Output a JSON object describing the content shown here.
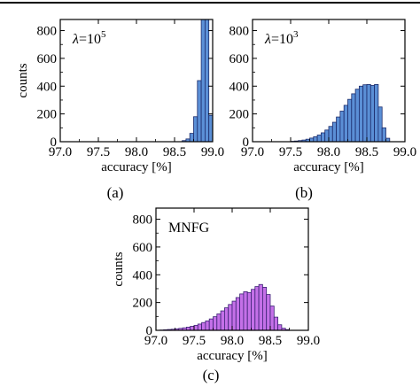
{
  "chart_data": [
    {
      "type": "bar",
      "panel": "(a)",
      "annotation": {
        "symbol": "λ",
        "equals": "=",
        "base": "10",
        "exponent": "5"
      },
      "xlabel": "accuracy [%]",
      "ylabel": "counts",
      "xlim": [
        97.0,
        99.0
      ],
      "ylim": [
        0,
        880
      ],
      "xticks": [
        "97.0",
        "97.5",
        "98.0",
        "98.5",
        "99.0"
      ],
      "yticks": [
        "0",
        "200",
        "400",
        "600",
        "800"
      ],
      "bin_width": 0.05,
      "color": "#5b8fd6",
      "bins": [
        {
          "x": 98.6,
          "y": 8
        },
        {
          "x": 98.65,
          "y": 20
        },
        {
          "x": 98.7,
          "y": 60
        },
        {
          "x": 98.75,
          "y": 180
        },
        {
          "x": 98.8,
          "y": 440
        },
        {
          "x": 98.85,
          "y": 880
        },
        {
          "x": 98.9,
          "y": 880
        },
        {
          "x": 98.95,
          "y": 190
        }
      ]
    },
    {
      "type": "bar",
      "panel": "(b)",
      "annotation": {
        "symbol": "λ",
        "equals": "=",
        "base": "10",
        "exponent": "3"
      },
      "xlabel": "accuracy [%]",
      "ylabel": "",
      "xlim": [
        97.0,
        99.0
      ],
      "ylim": [
        0,
        880
      ],
      "xticks": [
        "97.0",
        "97.5",
        "98.0",
        "98.5",
        "99.0"
      ],
      "yticks": [
        "0",
        "200",
        "400",
        "600",
        "800"
      ],
      "bin_width": 0.05,
      "color": "#5b8fd6",
      "bins": [
        {
          "x": 97.5,
          "y": 3
        },
        {
          "x": 97.55,
          "y": 5
        },
        {
          "x": 97.6,
          "y": 8
        },
        {
          "x": 97.65,
          "y": 12
        },
        {
          "x": 97.7,
          "y": 18
        },
        {
          "x": 97.75,
          "y": 26
        },
        {
          "x": 97.8,
          "y": 36
        },
        {
          "x": 97.85,
          "y": 48
        },
        {
          "x": 97.9,
          "y": 64
        },
        {
          "x": 97.95,
          "y": 84
        },
        {
          "x": 98.0,
          "y": 110
        },
        {
          "x": 98.05,
          "y": 140
        },
        {
          "x": 98.1,
          "y": 178
        },
        {
          "x": 98.15,
          "y": 220
        },
        {
          "x": 98.2,
          "y": 262
        },
        {
          "x": 98.25,
          "y": 305
        },
        {
          "x": 98.3,
          "y": 345
        },
        {
          "x": 98.35,
          "y": 378
        },
        {
          "x": 98.4,
          "y": 400
        },
        {
          "x": 98.45,
          "y": 410
        },
        {
          "x": 98.5,
          "y": 412
        },
        {
          "x": 98.55,
          "y": 405
        },
        {
          "x": 98.6,
          "y": 412
        },
        {
          "x": 98.65,
          "y": 250
        },
        {
          "x": 98.7,
          "y": 100
        },
        {
          "x": 98.75,
          "y": 25
        }
      ]
    },
    {
      "type": "bar",
      "panel": "(c)",
      "annotation": {
        "text": "MNFG"
      },
      "xlabel": "accuracy [%]",
      "ylabel": "counts",
      "xlim": [
        97.0,
        99.0
      ],
      "ylim": [
        0,
        880
      ],
      "xticks": [
        "97.0",
        "97.5",
        "98.0",
        "98.5",
        "99.0"
      ],
      "yticks": [
        "0",
        "200",
        "400",
        "600",
        "800"
      ],
      "bin_width": 0.05,
      "color": "#c470e8",
      "bins": [
        {
          "x": 97.05,
          "y": 2
        },
        {
          "x": 97.1,
          "y": 4
        },
        {
          "x": 97.15,
          "y": 6
        },
        {
          "x": 97.2,
          "y": 8
        },
        {
          "x": 97.25,
          "y": 11
        },
        {
          "x": 97.3,
          "y": 14
        },
        {
          "x": 97.35,
          "y": 18
        },
        {
          "x": 97.4,
          "y": 23
        },
        {
          "x": 97.45,
          "y": 29
        },
        {
          "x": 97.5,
          "y": 36
        },
        {
          "x": 97.55,
          "y": 45
        },
        {
          "x": 97.6,
          "y": 56
        },
        {
          "x": 97.65,
          "y": 68
        },
        {
          "x": 97.7,
          "y": 82
        },
        {
          "x": 97.75,
          "y": 98
        },
        {
          "x": 97.8,
          "y": 118
        },
        {
          "x": 97.85,
          "y": 140
        },
        {
          "x": 97.9,
          "y": 162
        },
        {
          "x": 97.95,
          "y": 186
        },
        {
          "x": 98.0,
          "y": 210
        },
        {
          "x": 98.05,
          "y": 236
        },
        {
          "x": 98.1,
          "y": 262
        },
        {
          "x": 98.15,
          "y": 278
        },
        {
          "x": 98.2,
          "y": 272
        },
        {
          "x": 98.25,
          "y": 295
        },
        {
          "x": 98.3,
          "y": 315
        },
        {
          "x": 98.35,
          "y": 330
        },
        {
          "x": 98.4,
          "y": 310
        },
        {
          "x": 98.45,
          "y": 258
        },
        {
          "x": 98.5,
          "y": 175
        },
        {
          "x": 98.55,
          "y": 95
        },
        {
          "x": 98.6,
          "y": 40
        },
        {
          "x": 98.65,
          "y": 15
        },
        {
          "x": 98.7,
          "y": 5
        }
      ]
    }
  ]
}
